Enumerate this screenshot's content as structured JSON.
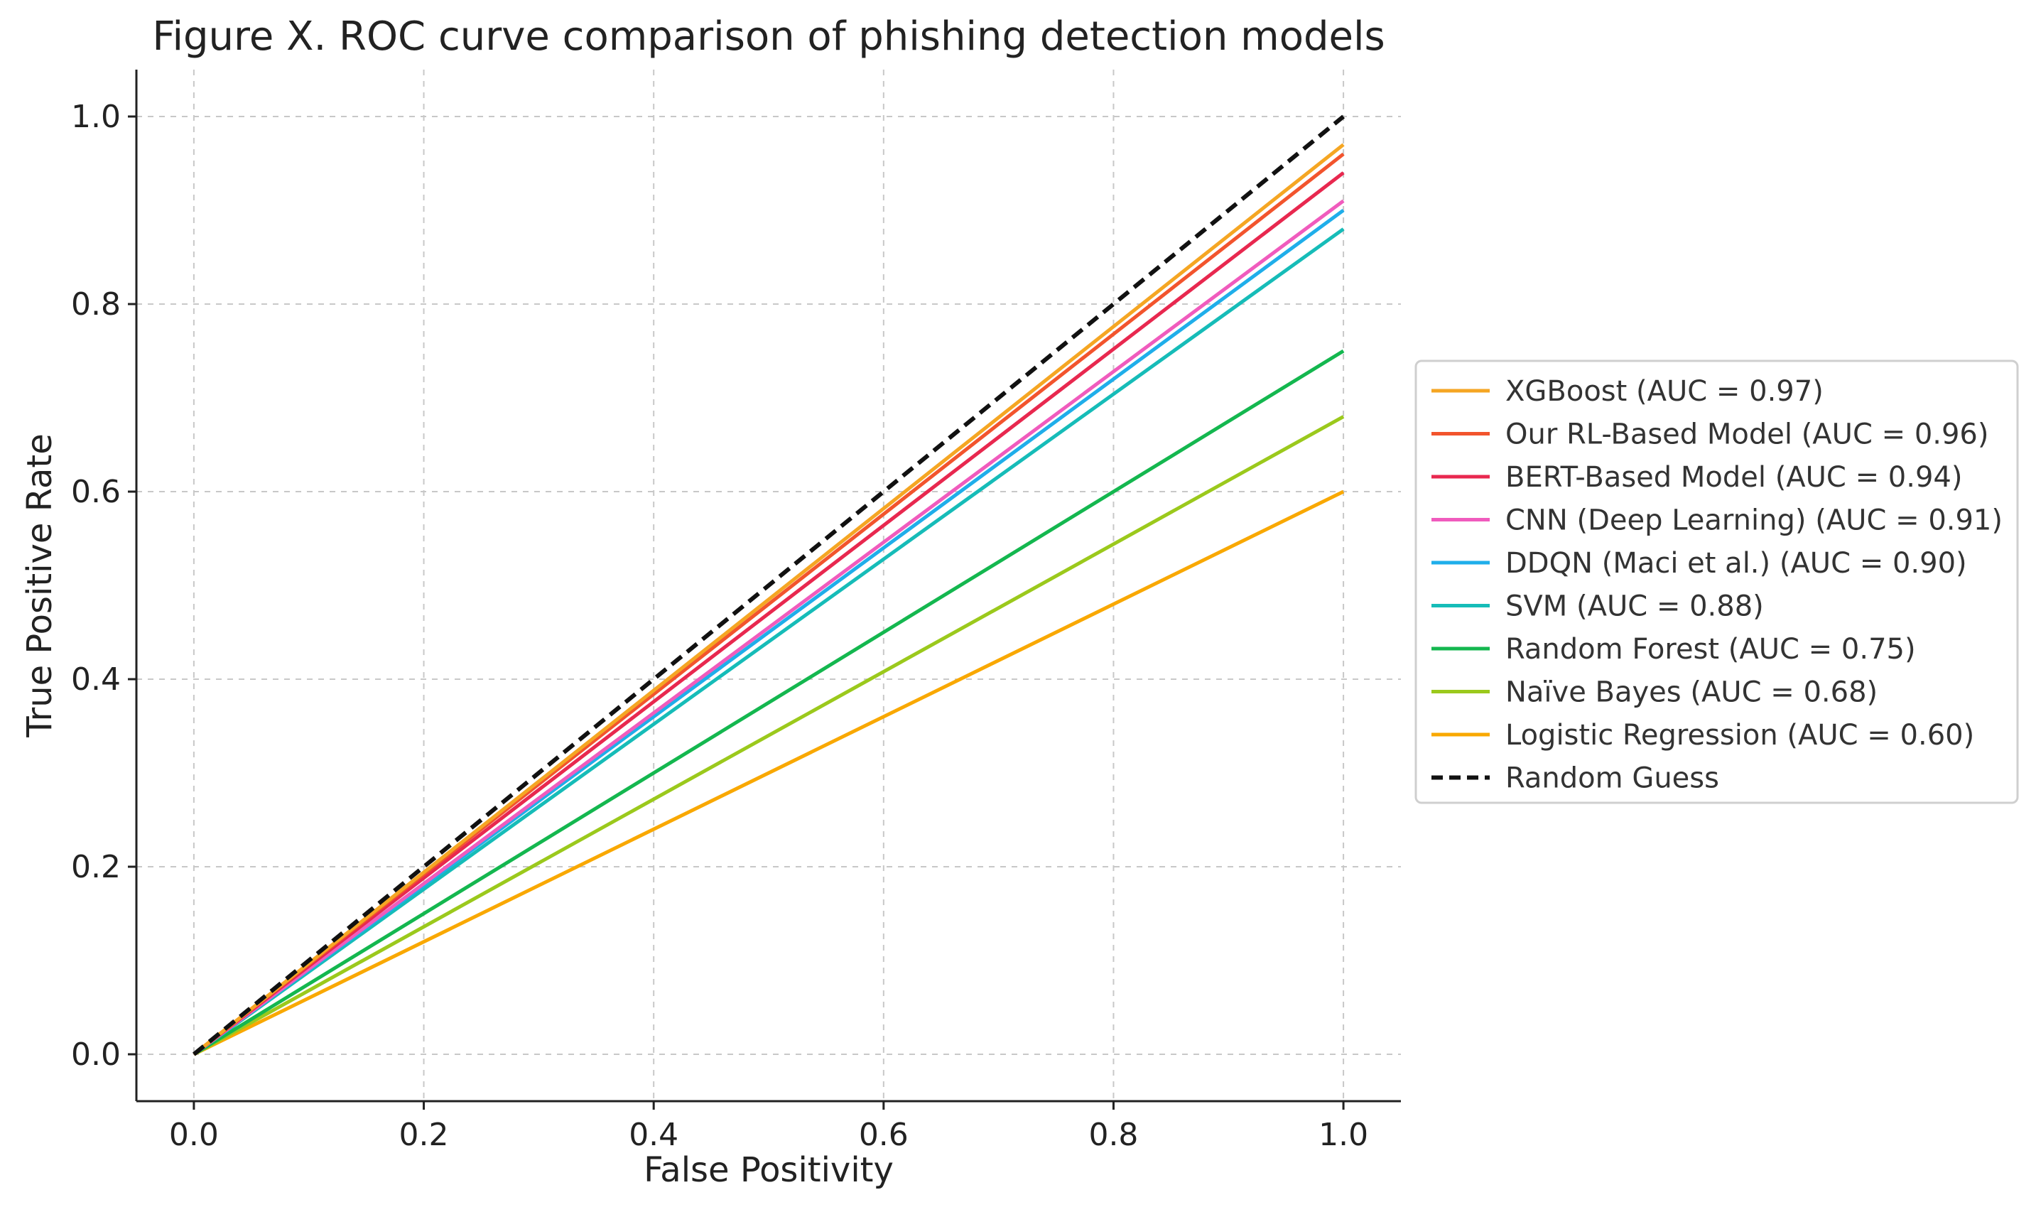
{
  "chart_data": {
    "type": "line",
    "title": "Figure X. ROC curve comparison of phishing detection models",
    "xlabel": "False Positivity",
    "ylabel": "True Positive Rate",
    "xlim": [
      -0.05,
      1.05
    ],
    "ylim": [
      -0.05,
      1.05
    ],
    "x_ticks": [
      0.0,
      0.2,
      0.4,
      0.6,
      0.8,
      1.0
    ],
    "y_ticks": [
      0.0,
      0.2,
      0.4,
      0.6,
      0.8,
      1.0
    ],
    "x_tick_labels": [
      "0.0",
      "0.2",
      "0.4",
      "0.6",
      "0.8",
      "1.0"
    ],
    "y_tick_labels": [
      "0.0",
      "0.2",
      "0.4",
      "0.6",
      "0.8",
      "1.0"
    ],
    "grid": true,
    "legend_position": "outside-right",
    "series": [
      {
        "name": "XGBoost (AUC = 0.97)",
        "color": "#f5a623",
        "dashed": false,
        "x": [
          0,
          1
        ],
        "y": [
          0,
          0.97
        ]
      },
      {
        "name": "Our RL-Based Model (AUC = 0.96)",
        "color": "#f2542d",
        "dashed": false,
        "x": [
          0,
          1
        ],
        "y": [
          0,
          0.96
        ]
      },
      {
        "name": "BERT-Based Model (AUC = 0.94)",
        "color": "#e8284f",
        "dashed": false,
        "x": [
          0,
          1
        ],
        "y": [
          0,
          0.94
        ]
      },
      {
        "name": "CNN (Deep Learning) (AUC = 0.91)",
        "color": "#f05bbd",
        "dashed": false,
        "x": [
          0,
          1
        ],
        "y": [
          0,
          0.91
        ]
      },
      {
        "name": "DDQN (Maci et al.) (AUC = 0.90)",
        "color": "#1faeea",
        "dashed": false,
        "x": [
          0,
          1
        ],
        "y": [
          0,
          0.9
        ]
      },
      {
        "name": "SVM (AUC = 0.88)",
        "color": "#16bcb8",
        "dashed": false,
        "x": [
          0,
          1
        ],
        "y": [
          0,
          0.88
        ]
      },
      {
        "name": "Random Forest (AUC = 0.75)",
        "color": "#14b74f",
        "dashed": false,
        "x": [
          0,
          1
        ],
        "y": [
          0,
          0.75
        ]
      },
      {
        "name": "Naïve Bayes (AUC = 0.68)",
        "color": "#9bc91c",
        "dashed": false,
        "x": [
          0,
          1
        ],
        "y": [
          0,
          0.68
        ]
      },
      {
        "name": "Logistic Regression (AUC = 0.60)",
        "color": "#f9a800",
        "dashed": false,
        "x": [
          0,
          1
        ],
        "y": [
          0,
          0.6
        ]
      },
      {
        "name": "Random Guess",
        "color": "#111111",
        "dashed": true,
        "x": [
          0,
          1
        ],
        "y": [
          0,
          1.0
        ]
      }
    ]
  }
}
